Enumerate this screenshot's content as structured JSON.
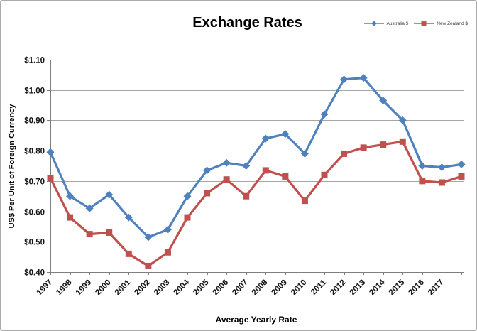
{
  "chart_data": {
    "type": "line",
    "title": "Exchange Rates",
    "xlabel": "Average Yearly Rate",
    "ylabel": "US$ Per Unit of Foreign Currency",
    "categories": [
      "1997",
      "1998",
      "1999",
      "2000",
      "2001",
      "2002",
      "2003",
      "2004",
      "2005",
      "2006",
      "2007",
      "2008",
      "2009",
      "2010",
      "2011",
      "2012",
      "2013",
      "2014",
      "2015",
      "2016",
      "2017",
      ""
    ],
    "series": [
      {
        "name": "Australia $",
        "color": "#4F81BD",
        "marker": "diamond",
        "values": [
          0.795,
          0.65,
          0.61,
          0.655,
          0.58,
          0.515,
          0.54,
          0.65,
          0.735,
          0.76,
          0.75,
          0.84,
          0.855,
          0.79,
          0.92,
          1.035,
          1.04,
          0.965,
          0.9,
          0.75,
          0.745,
          0.755
        ]
      },
      {
        "name": "New Zealand $",
        "color": "#C0504D",
        "marker": "square",
        "values": [
          0.71,
          0.58,
          0.525,
          0.53,
          0.46,
          0.42,
          0.465,
          0.58,
          0.66,
          0.705,
          0.65,
          0.735,
          0.715,
          0.635,
          0.72,
          0.79,
          0.81,
          0.82,
          0.83,
          0.7,
          0.695,
          0.715
        ]
      }
    ],
    "ylim": [
      0.4,
      1.1
    ],
    "y_tick_step": 0.1,
    "y_tick_labels": [
      "$0.40",
      "$0.50",
      "$0.60",
      "$0.70",
      "$0.80",
      "$0.90",
      "$1.00",
      "$1.10"
    ],
    "grid": "horizontal",
    "legend_position": "top-right",
    "colors": {
      "gridline": "#A6A6A6",
      "axis": "#7F7F7F",
      "tick_text": "#141414",
      "background": "#FFFFFF",
      "border": "#ABABAB"
    }
  }
}
